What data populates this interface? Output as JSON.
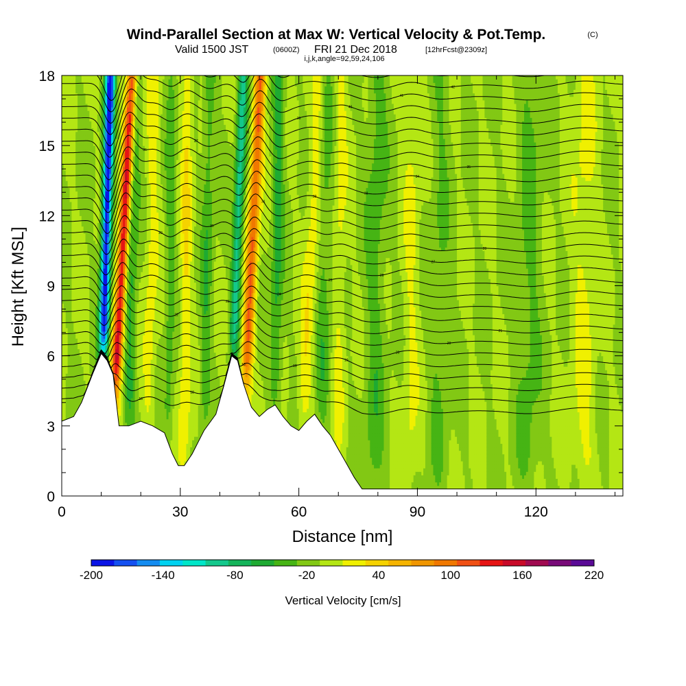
{
  "chart_data": {
    "type": "heatmap",
    "title": "Wind-Parallel Section at Max W: Vertical Velocity & Pot.Temp.",
    "title_mark": "(C)",
    "subtitle_prefix": "Valid 1500 JST",
    "subtitle_zulu": "(0600Z)",
    "subtitle_date": "FRI 21 Dec 2018",
    "subtitle_fcst": "[12hrFcst@2309z]",
    "subtitle_ijk": "i,j,k,angle=92,59,24,106",
    "xlabel": "Distance [nm]",
    "ylabel": "Height [Kft MSL]",
    "xlim": [
      0,
      142
    ],
    "ylim": [
      0,
      18
    ],
    "xticks": [
      0,
      30,
      60,
      90,
      120
    ],
    "yticks": [
      0,
      3,
      6,
      9,
      12,
      15,
      18
    ],
    "colorbar": {
      "title": "Vertical Velocity [cm/s]",
      "tick_labels": [
        "-200",
        "-140",
        "-80",
        "-20",
        "40",
        "100",
        "160",
        "220"
      ],
      "levels": [
        -200,
        -180,
        -160,
        -140,
        -120,
        -100,
        -80,
        -60,
        -40,
        -20,
        0,
        20,
        40,
        60,
        80,
        100,
        120,
        140,
        160,
        180,
        200,
        220
      ],
      "colors": [
        "#0a14e6",
        "#1450f0",
        "#148cf0",
        "#00d2f0",
        "#00e6c8",
        "#14c88c",
        "#14b45a",
        "#1eaa32",
        "#46b414",
        "#82c814",
        "#b4e614",
        "#f0f000",
        "#f5d200",
        "#f5b400",
        "#f09600",
        "#f07800",
        "#f05014",
        "#e61414",
        "#c80a28",
        "#a00a50",
        "#780a78",
        "#5a0a96"
      ]
    },
    "terrain_profile": [
      [
        0,
        3.2
      ],
      [
        3,
        3.4
      ],
      [
        5,
        4.0
      ],
      [
        8,
        5.3
      ],
      [
        10,
        6.1
      ],
      [
        11.5,
        5.8
      ],
      [
        13,
        5.2
      ],
      [
        14.5,
        3.0
      ],
      [
        17,
        3.0
      ],
      [
        20,
        3.2
      ],
      [
        23,
        3.0
      ],
      [
        26,
        2.7
      ],
      [
        28,
        1.8
      ],
      [
        29.5,
        1.3
      ],
      [
        31,
        1.3
      ],
      [
        33,
        1.8
      ],
      [
        36,
        2.8
      ],
      [
        39,
        3.5
      ],
      [
        41,
        4.7
      ],
      [
        43,
        6.0
      ],
      [
        44.5,
        5.8
      ],
      [
        46,
        4.8
      ],
      [
        48,
        3.8
      ],
      [
        50,
        3.4
      ],
      [
        52,
        3.7
      ],
      [
        54,
        3.9
      ],
      [
        56,
        3.4
      ],
      [
        58,
        3.0
      ],
      [
        60,
        2.8
      ],
      [
        62,
        3.2
      ],
      [
        64,
        3.5
      ],
      [
        66,
        3.0
      ],
      [
        68,
        2.6
      ],
      [
        70,
        2.0
      ],
      [
        72,
        1.4
      ],
      [
        74,
        0.8
      ],
      [
        76,
        0.3
      ],
      [
        142,
        0.3
      ]
    ],
    "updrafts": [
      {
        "x": 13.5,
        "peak": 165,
        "lean": 0.32,
        "width": 1.3
      },
      {
        "x": 46.5,
        "peak": 120,
        "lean": 0.28,
        "width": 1.4
      },
      {
        "x": 22,
        "peak": 30,
        "lean": 0.1,
        "width": 1.6
      },
      {
        "x": 31,
        "peak": 40,
        "lean": 0.05,
        "width": 1.4
      },
      {
        "x": 61,
        "peak": 35,
        "lean": 0.3,
        "width": 1.8
      },
      {
        "x": 70,
        "peak": 25,
        "lean": 0.05,
        "width": 1.5
      },
      {
        "x": 88,
        "peak": 22,
        "lean": 0.05,
        "width": 2.0
      },
      {
        "x": 132,
        "peak": 25,
        "lean": 0.02,
        "width": 3.0
      }
    ],
    "downdrafts": [
      {
        "x": 10.5,
        "peak": -200,
        "lean": 0.15,
        "width": 1.2
      },
      {
        "x": 43.5,
        "peak": -90,
        "lean": 0.2,
        "width": 1.2
      },
      {
        "x": 17,
        "peak": -45,
        "lean": 0.1,
        "width": 1.5
      },
      {
        "x": 27,
        "peak": -30,
        "lean": 0.05,
        "width": 1.2
      },
      {
        "x": 36,
        "peak": -35,
        "lean": 0.1,
        "width": 1.4
      },
      {
        "x": 54,
        "peak": -45,
        "lean": 0.08,
        "width": 1.5
      },
      {
        "x": 66,
        "peak": -30,
        "lean": 0.05,
        "width": 1.8
      },
      {
        "x": 79,
        "peak": -30,
        "lean": 0.05,
        "width": 2.5
      },
      {
        "x": 95,
        "peak": -20,
        "lean": 0.05,
        "width": 2.5
      },
      {
        "x": 118,
        "peak": -25,
        "lean": 0.04,
        "width": 3.0
      }
    ],
    "isentrope_base_heights_kft": [
      3.6,
      4.1,
      4.6,
      5.1,
      5.6,
      6.1,
      6.6,
      7.1,
      7.6,
      8.1,
      8.6,
      9.1,
      9.6,
      10.1,
      10.6,
      11.1,
      11.6,
      12.1,
      12.6,
      13.1,
      13.6,
      14.1,
      14.6,
      15.1,
      15.6,
      16.1,
      16.6,
      17.1,
      17.6,
      18.1
    ],
    "isentrope_labels": [
      "18",
      "18",
      "18",
      "19",
      "19",
      "20",
      "20",
      "21",
      "22",
      "23",
      "24",
      "25",
      "26",
      "27",
      "28",
      "29",
      "30",
      "31",
      "32",
      "33",
      "34",
      "35",
      "36",
      "37",
      "38",
      "39",
      "40",
      "41",
      "42",
      "43"
    ]
  }
}
